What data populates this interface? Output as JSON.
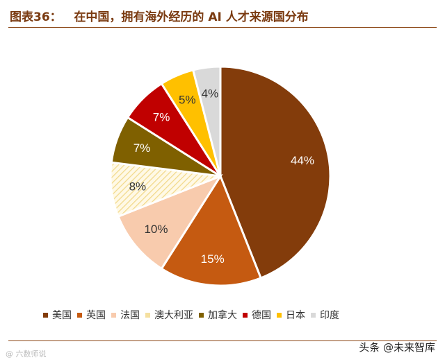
{
  "header": {
    "figure_label": "图表36：",
    "title": "在中国，拥有海外经历的 AI 人才来源国分布"
  },
  "chart_data": {
    "type": "pie",
    "title": "在中国，拥有海外经历的 AI 人才来源国分布",
    "labels": [
      "美国",
      "英国",
      "法国",
      "澳大利亚",
      "加拿大",
      "德国",
      "日本",
      "印度"
    ],
    "values": [
      44,
      15,
      10,
      8,
      7,
      7,
      5,
      4
    ],
    "value_labels": [
      "44%",
      "15%",
      "10%",
      "8%",
      "7%",
      "7%",
      "5%",
      "4%"
    ],
    "colors": [
      "#833c0b",
      "#c55a11",
      "#f8cbad",
      "#fff2cc",
      "#7f6000",
      "#c00000",
      "#ffc000",
      "#d9d9d9"
    ],
    "label_colors": [
      "#ffffff",
      "#ffffff",
      "#333333",
      "#333333",
      "#ffffff",
      "#ffffff",
      "#333333",
      "#333333"
    ],
    "patterns": [
      "none",
      "none",
      "none",
      "diagonal-hatch",
      "none",
      "none",
      "none",
      "none"
    ],
    "start_angle_deg": 0,
    "direction": "clockwise",
    "legend_position": "bottom"
  },
  "watermarks": {
    "left": "@ 六数师说",
    "right": "头条 @未来智库"
  }
}
